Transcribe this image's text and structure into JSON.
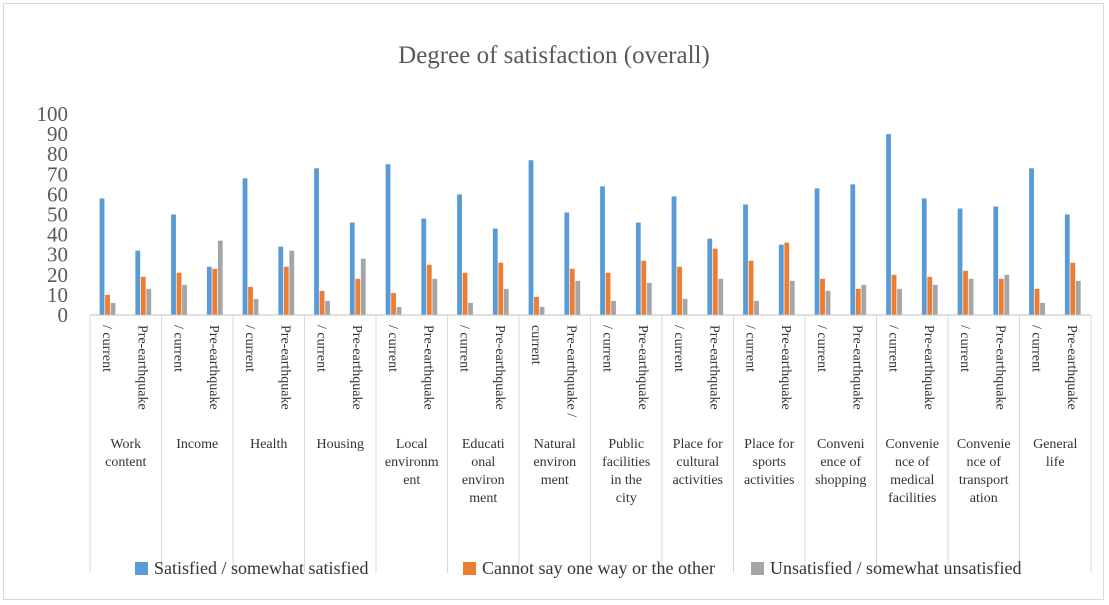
{
  "chart_data": {
    "type": "bar",
    "title": "Degree of satisfaction (overall)",
    "xlabel": "",
    "ylabel": "",
    "ylim": [
      0,
      100
    ],
    "yticks": [
      0,
      10,
      20,
      30,
      40,
      50,
      60,
      70,
      80,
      90,
      100
    ],
    "grid": false,
    "legend_position": "bottom",
    "groups": [
      {
        "label": [
          "Work",
          "content"
        ],
        "sublabels": [
          "/ current",
          "Pre-earthquake"
        ]
      },
      {
        "label": [
          "Income"
        ],
        "sublabels": [
          "/ current",
          "Pre-earthquake"
        ]
      },
      {
        "label": [
          "Health"
        ],
        "sublabels": [
          "/ current",
          "Pre-earthquake"
        ]
      },
      {
        "label": [
          "Housing"
        ],
        "sublabels": [
          "/ current",
          "Pre-earthquake"
        ]
      },
      {
        "label": [
          "Local",
          "environm",
          "ent"
        ],
        "sublabels": [
          "/ current",
          "Pre-earthquake"
        ]
      },
      {
        "label": [
          "Educati",
          "onal",
          "environ",
          "ment"
        ],
        "sublabels": [
          "/ current",
          "Pre-earthquake"
        ]
      },
      {
        "label": [
          "Natural",
          "environ",
          "ment"
        ],
        "sublabels": [
          "current",
          "Pre-earthquake /"
        ]
      },
      {
        "label": [
          "Public",
          "facilities",
          "in the",
          "city"
        ],
        "sublabels": [
          "/ current",
          "Pre-earthquake"
        ]
      },
      {
        "label": [
          "Place for",
          "cultural",
          "activities"
        ],
        "sublabels": [
          "/ current",
          "Pre-earthquake"
        ]
      },
      {
        "label": [
          "Place for",
          "sports",
          "activities"
        ],
        "sublabels": [
          "/ current",
          "Pre-earthquake"
        ]
      },
      {
        "label": [
          "Conveni",
          "ence of",
          "shopping"
        ],
        "sublabels": [
          "/ current",
          "Pre-earthquake"
        ]
      },
      {
        "label": [
          "Convenie",
          "nce of",
          "medical",
          "facilities"
        ],
        "sublabels": [
          "/ current",
          "Pre-earthquake"
        ]
      },
      {
        "label": [
          "Convenie",
          "nce of",
          "transport",
          "ation"
        ],
        "sublabels": [
          "/ current",
          "Pre-earthquake"
        ]
      },
      {
        "label": [
          "General",
          "life"
        ],
        "sublabels": [
          "/ current",
          "Pre-earthquake"
        ]
      }
    ],
    "series": [
      {
        "name": "Satisfied / somewhat satisfied",
        "color": "#5b9bd5",
        "values": [
          58,
          32,
          50,
          24,
          68,
          34,
          73,
          46,
          75,
          48,
          60,
          43,
          77,
          51,
          64,
          46,
          59,
          38,
          55,
          35,
          63,
          65,
          90,
          58,
          53,
          54,
          73,
          50
        ]
      },
      {
        "name": "Cannot say one way or the other",
        "color": "#ed7d31",
        "values": [
          10,
          19,
          21,
          23,
          14,
          24,
          12,
          18,
          11,
          25,
          21,
          26,
          9,
          23,
          21,
          27,
          24,
          33,
          27,
          36,
          18,
          13,
          20,
          19,
          22,
          18,
          13,
          26
        ]
      },
      {
        "name": "Unsatisfied / somewhat unsatisfied",
        "color": "#a5a5a5",
        "values": [
          6,
          13,
          15,
          37,
          8,
          32,
          7,
          28,
          4,
          18,
          6,
          13,
          4,
          17,
          7,
          16,
          8,
          18,
          7,
          17,
          12,
          15,
          13,
          15,
          18,
          20,
          6,
          17
        ]
      }
    ]
  }
}
